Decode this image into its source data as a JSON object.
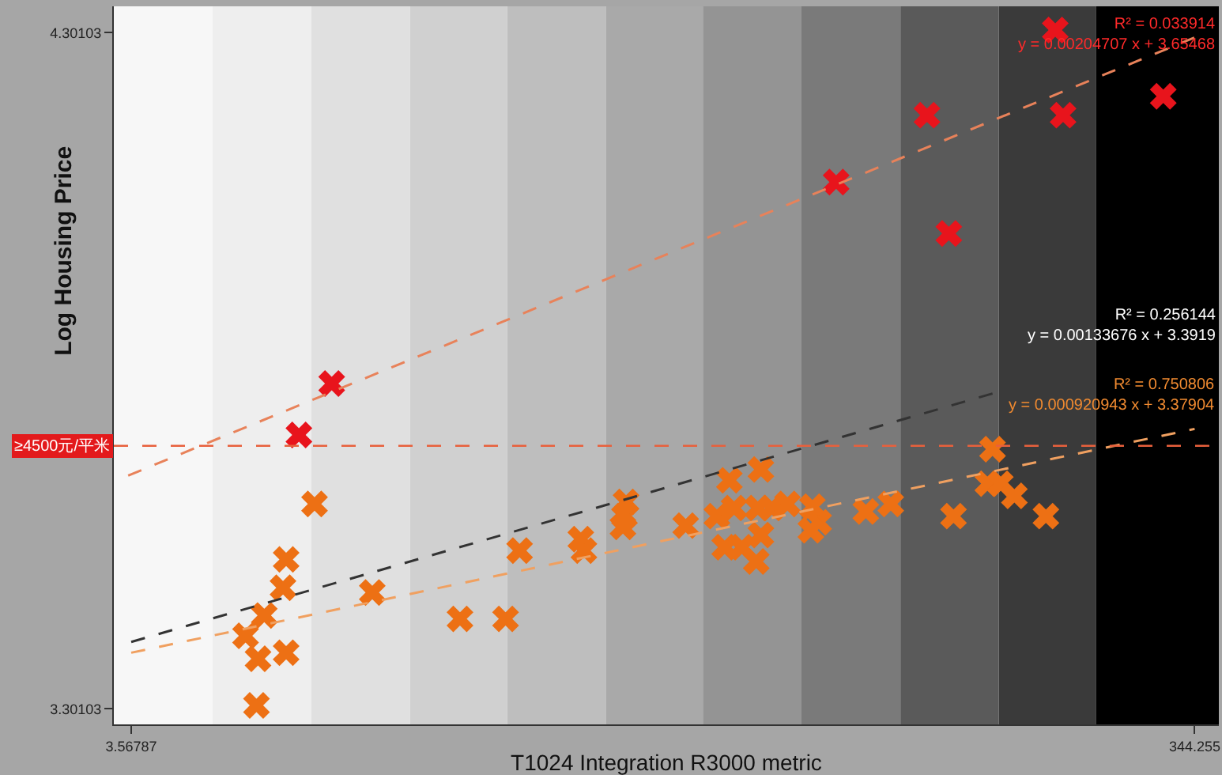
{
  "chart_data": {
    "type": "scatter",
    "xlabel": "T1024 Integration R3000 metric",
    "ylabel": "Log Housing Price",
    "xlim": [
      -2,
      352
    ],
    "ylim": [
      3.278,
      4.34
    ],
    "xticks": [
      3.56787,
      344.255
    ],
    "yticks": [
      3.30103,
      4.30103
    ],
    "grid": false,
    "marker": "cross",
    "series": [
      {
        "color": "#e8141c",
        "x": [
          299.6,
          258.5,
          302.1,
          334.2,
          229.4,
          265.5,
          67.8,
          57.3
        ],
        "values": [
          4.305,
          4.179,
          4.179,
          4.207,
          4.08,
          4.004,
          3.782,
          3.706
        ]
      },
      {
        "color": "#ed7014",
        "x": [
          62.3,
          53.2,
          52.2,
          46.2,
          40.2,
          44.2,
          53.2,
          43.7,
          80.8,
          108.9,
          123.5,
          128.0,
          147.6,
          148.6,
          162.1,
          161.6,
          161.1,
          181.2,
          195.2,
          205.3,
          191.2,
          196.7,
          204.3,
          208.8,
          213.8,
          193.7,
          199.2,
          205.3,
          203.8,
          221.8,
          223.8,
          221.3,
          238.9,
          246.9,
          267.0,
          279.5,
          278.0,
          282.0,
          286.5,
          296.6
        ],
        "values": [
          3.604,
          3.522,
          3.48,
          3.439,
          3.409,
          3.375,
          3.384,
          3.306,
          3.473,
          3.434,
          3.434,
          3.535,
          3.552,
          3.535,
          3.607,
          3.586,
          3.57,
          3.572,
          3.639,
          3.655,
          3.586,
          3.598,
          3.598,
          3.598,
          3.604,
          3.54,
          3.54,
          3.558,
          3.519,
          3.6,
          3.577,
          3.565,
          3.593,
          3.604,
          3.586,
          3.685,
          3.634,
          3.634,
          3.616,
          3.586
        ]
      },
      {
        "type": "line",
        "marker": "none",
        "color": "#e8825a",
        "line_style": "dashed",
        "x": [
          2.6,
          344.3
        ],
        "values": [
          3.646,
          4.294
        ]
      },
      {
        "type": "line",
        "marker": "none",
        "color": "#333333",
        "line_style": "dashed",
        "x": [
          3.57,
          280
        ],
        "values": [
          3.4,
          3.768
        ]
      },
      {
        "type": "line",
        "marker": "none",
        "color": "#f0a060",
        "line_style": "dashed",
        "x": [
          3.57,
          344.25
        ],
        "values": [
          3.384,
          3.715
        ]
      }
    ],
    "ref_lines": [
      {
        "axis": "y",
        "value": 3.69,
        "label": "≥4500元/平米",
        "color": "#e8603c",
        "line_style": "dashed"
      }
    ],
    "bands": [
      {
        "axis": "x",
        "from": -2,
        "to": 29.66,
        "color": "#f7f7f7"
      },
      {
        "axis": "x",
        "from": 29.66,
        "to": 61.27,
        "color": "#eeeeee"
      },
      {
        "axis": "x",
        "from": 61.27,
        "to": 92.88,
        "color": "#e0e0e0"
      },
      {
        "axis": "x",
        "from": 92.88,
        "to": 124.0,
        "color": "#d0d0d0"
      },
      {
        "axis": "x",
        "from": 124.0,
        "to": 155.6,
        "color": "#bebebe"
      },
      {
        "axis": "x",
        "from": 155.6,
        "to": 186.7,
        "color": "#a9a9a9"
      },
      {
        "axis": "x",
        "from": 186.7,
        "to": 218.3,
        "color": "#949494"
      },
      {
        "axis": "x",
        "from": 218.3,
        "to": 250.0,
        "color": "#7a7a7a"
      },
      {
        "axis": "x",
        "from": 250.0,
        "to": 281.5,
        "color": "#5a5a5a"
      },
      {
        "axis": "x",
        "from": 281.5,
        "to": 312.6,
        "color": "#3a3a3a"
      },
      {
        "axis": "x",
        "from": 312.6,
        "to": 352,
        "color": "#000000"
      }
    ],
    "annotations": [
      "R² = 0.033914\ny = 0.00204707 x + 3.65468",
      "R² = 0.256144\ny = 0.00133676 x + 3.3919",
      "R² = 0.750806\ny = 0.000920943 x + 3.37904"
    ]
  }
}
